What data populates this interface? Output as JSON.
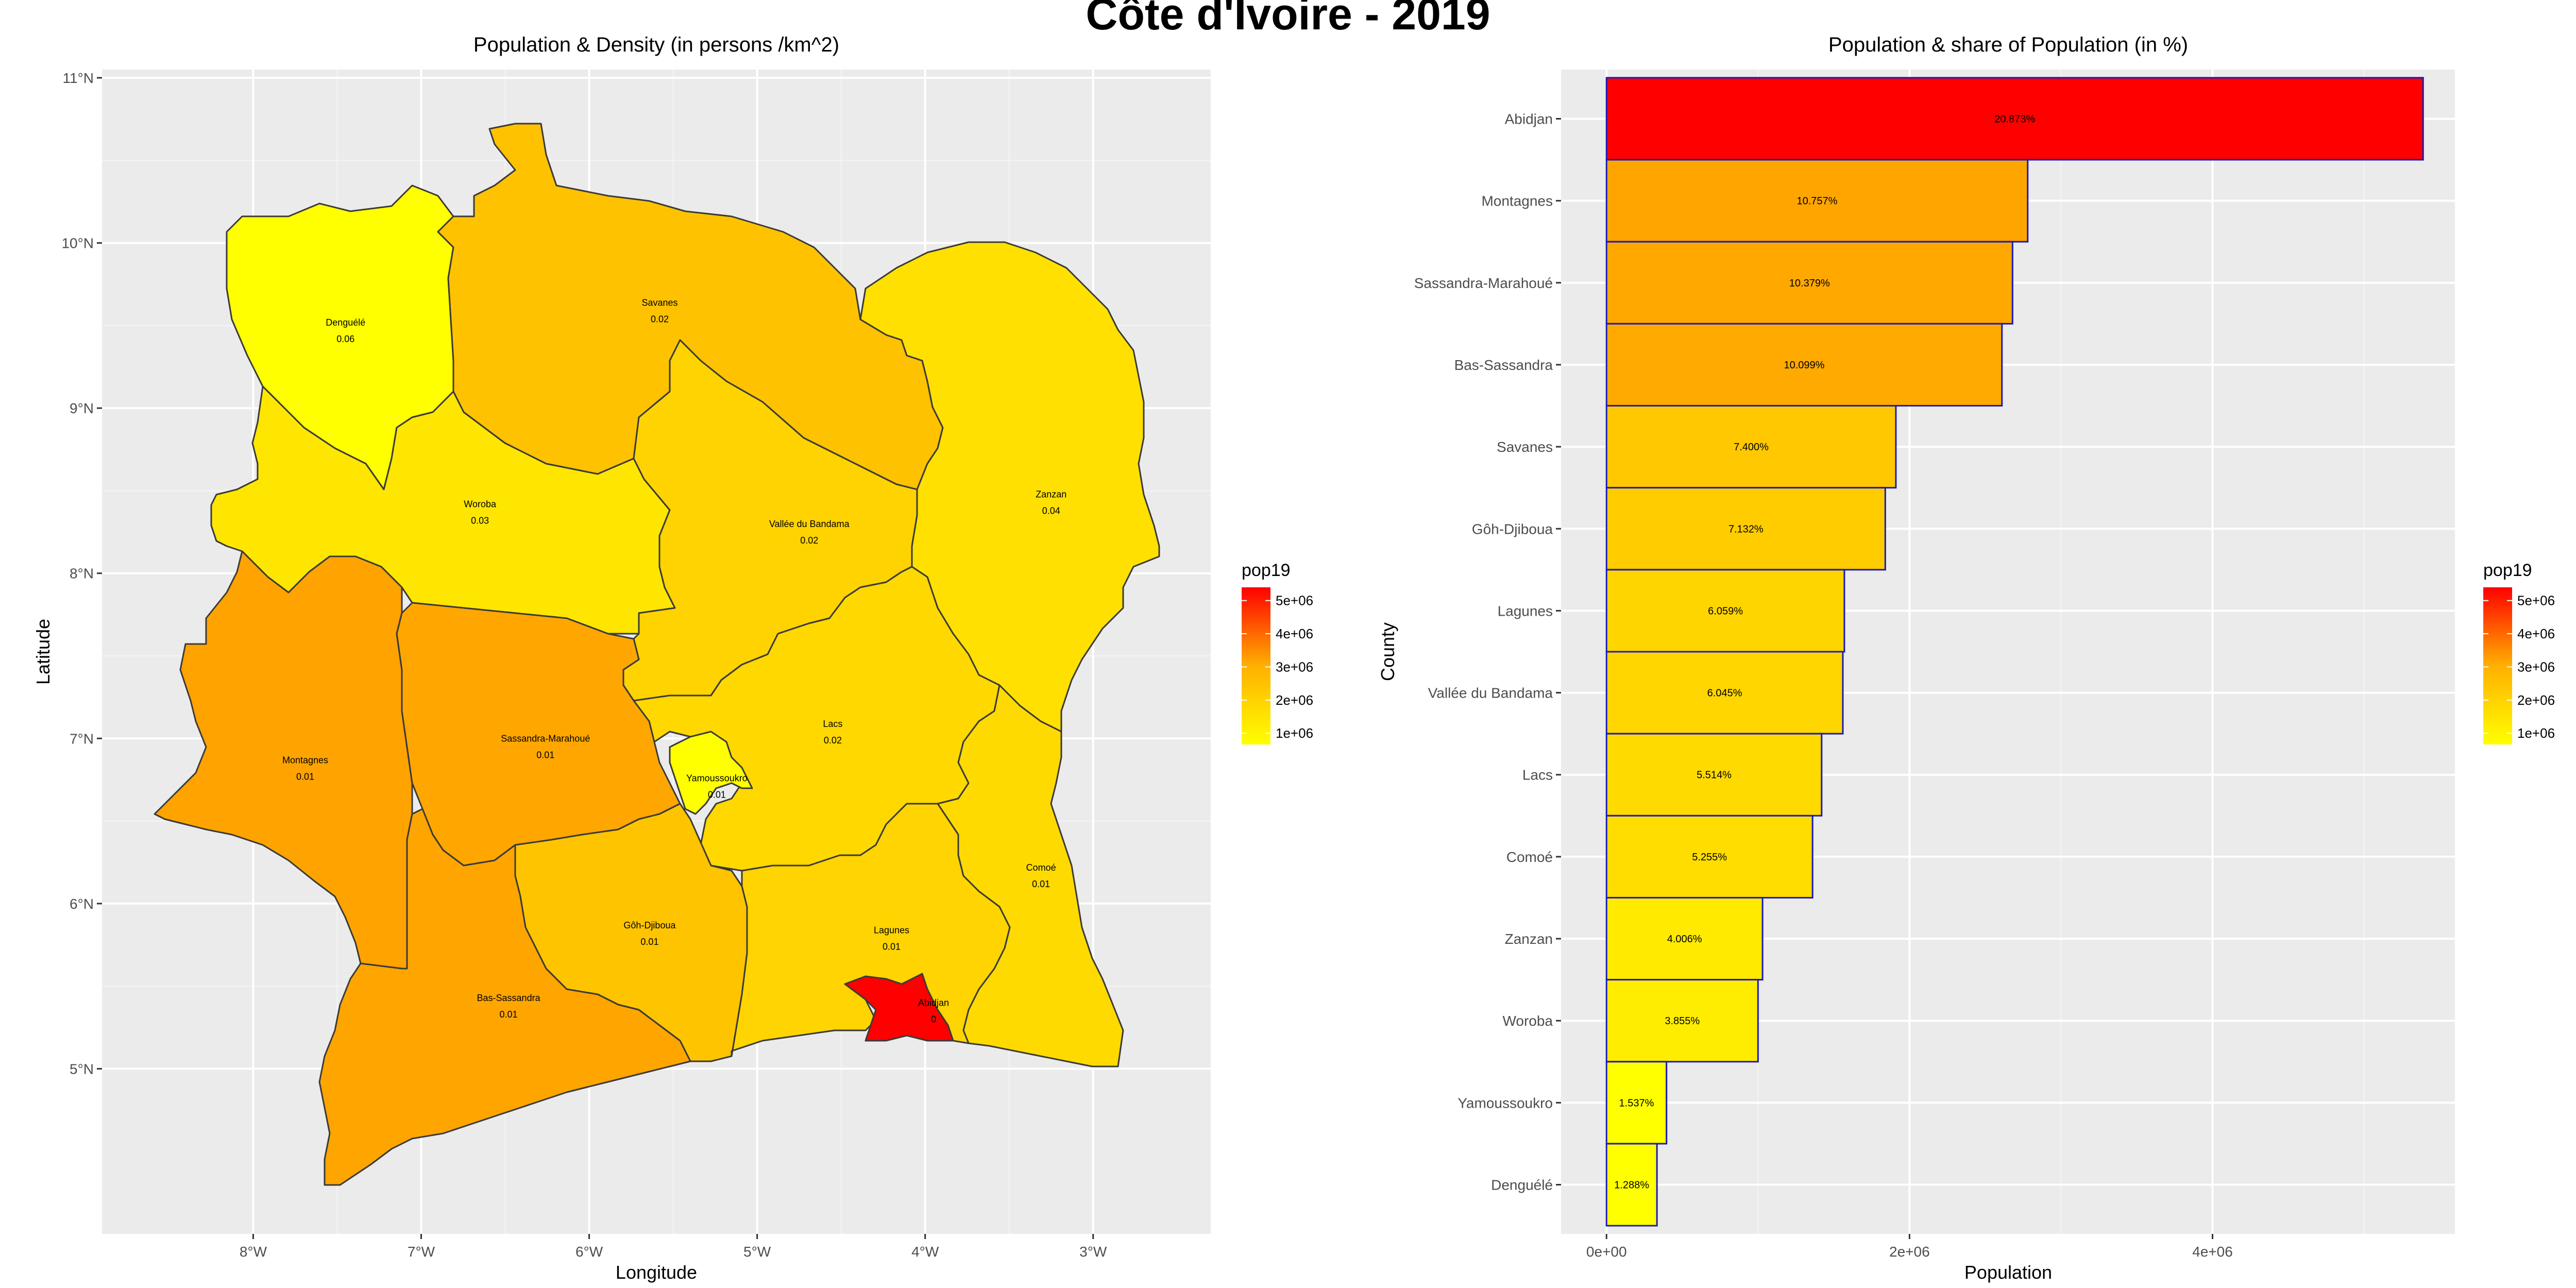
{
  "main_title": "Côte d'Ivoire - 2019",
  "colors": {
    "panel_bg": "#EBEBEB",
    "grid": "#FFFFFF",
    "bar_border": "#1A1AB8",
    "region_border": "#3A3A3A",
    "low": "#FFFF00",
    "high": "#FF0000"
  },
  "chart_data": [
    {
      "type": "map",
      "title": "Population & Density (in persons /km^2)",
      "xlabel": "Longitude",
      "ylabel": "Latitude",
      "x_ticks": [
        "8°W",
        "7°W",
        "6°W",
        "5°W",
        "4°W",
        "3°W"
      ],
      "y_ticks": [
        "11°N",
        "10°N",
        "9°N",
        "8°N",
        "7°N",
        "6°N",
        "5°N"
      ],
      "x_tick_values": [
        -8,
        -7,
        -6,
        -5,
        -4,
        -3
      ],
      "y_tick_values": [
        11,
        10,
        9,
        8,
        7,
        6,
        5
      ],
      "xlim": [
        -8.9,
        -2.3
      ],
      "ylim": [
        4.0,
        11.05
      ],
      "legend": {
        "title": "pop19",
        "labels": [
          "5e+06",
          "4e+06",
          "3e+06",
          "2e+06",
          "1e+06"
        ],
        "values": [
          5000000,
          4000000,
          3000000,
          2000000,
          1000000
        ],
        "range": [
          662000,
          5400000
        ],
        "position": "right"
      },
      "regions": [
        {
          "name": "Denguélé",
          "density": "0.06",
          "label_lon": -7.45,
          "label_lat": 9.5,
          "fill": "#FFFF00"
        },
        {
          "name": "Savanes",
          "density": "0.02",
          "label_lon": -5.58,
          "label_lat": 9.62,
          "fill": "#FFC200"
        },
        {
          "name": "Woroba",
          "density": "0.03",
          "label_lon": -6.65,
          "label_lat": 8.4,
          "fill": "#FFE600"
        },
        {
          "name": "Zanzan",
          "density": "0.04",
          "label_lon": -3.25,
          "label_lat": 8.46,
          "fill": "#FFE000"
        },
        {
          "name": "Vallée du Bandama",
          "density": "0.02",
          "label_lon": -4.69,
          "label_lat": 8.28,
          "fill": "#FFD300"
        },
        {
          "name": "Lacs",
          "density": "0.02",
          "label_lon": -4.55,
          "label_lat": 7.07,
          "fill": "#FFD800"
        },
        {
          "name": "Montagnes",
          "density": "0.01",
          "label_lon": -7.69,
          "label_lat": 6.85,
          "fill": "#FFA300"
        },
        {
          "name": "Sassandra-Marahoué",
          "density": "0.01",
          "label_lon": -6.26,
          "label_lat": 6.98,
          "fill": "#FFA700"
        },
        {
          "name": "Yamoussoukro",
          "density": "0.01",
          "label_lon": -5.24,
          "label_lat": 6.74,
          "fill": "#FFFF00"
        },
        {
          "name": "Comoé",
          "density": "0.01",
          "label_lon": -3.31,
          "label_lat": 6.2,
          "fill": "#FFDA00"
        },
        {
          "name": "Gôh-Djiboua",
          "density": "0.01",
          "label_lon": -5.64,
          "label_lat": 5.85,
          "fill": "#FFC400"
        },
        {
          "name": "Lagunes",
          "density": "0.01",
          "label_lon": -4.2,
          "label_lat": 5.82,
          "fill": "#FFD400"
        },
        {
          "name": "Bas-Sassandra",
          "density": "0.01",
          "label_lon": -6.48,
          "label_lat": 5.41,
          "fill": "#FFA500"
        },
        {
          "name": "Abidjan",
          "density": "0",
          "label_lon": -3.95,
          "label_lat": 5.38,
          "fill": "#FF0000"
        }
      ]
    },
    {
      "type": "bar",
      "orientation": "horizontal",
      "title": "Population & share of Population (in %)",
      "xlabel": "Population",
      "ylabel": "County",
      "x_ticks": [
        "0e+00",
        "2e+06",
        "4e+06"
      ],
      "x_tick_values": [
        0,
        2000000,
        4000000
      ],
      "xlim": [
        -300000,
        5600000
      ],
      "legend": {
        "title": "pop19",
        "labels": [
          "5e+06",
          "4e+06",
          "3e+06",
          "2e+06",
          "1e+06"
        ],
        "values": [
          5000000,
          4000000,
          3000000,
          2000000,
          1000000
        ],
        "range": [
          662000,
          5400000
        ],
        "position": "right"
      },
      "categories": [
        "Abidjan",
        "Montagnes",
        "Sassandra-Marahoué",
        "Bas-Sassandra",
        "Savanes",
        "Gôh-Djiboua",
        "Lagunes",
        "Vallée du Bandama",
        "Lacs",
        "Comoé",
        "Zanzan",
        "Woroba",
        "Yamoussoukro",
        "Denguélé"
      ],
      "values": [
        5390000,
        2780000,
        2680000,
        2610000,
        1910000,
        1840000,
        1570000,
        1560000,
        1420000,
        1360000,
        1030000,
        1000000,
        396000,
        333000
      ],
      "labels": [
        "20.873%",
        "10.757%",
        "10.379%",
        "10.099%",
        "7.400%",
        "7.132%",
        "6.059%",
        "6.045%",
        "5.514%",
        "5.255%",
        "4.006%",
        "3.855%",
        "1.537%",
        "1.288%"
      ],
      "fills": [
        "#FF0000",
        "#FFA500",
        "#FFA800",
        "#FFAA00",
        "#FFC800",
        "#FFCC00",
        "#FFD500",
        "#FFD600",
        "#FFDA00",
        "#FFDD00",
        "#FFEA00",
        "#FFED00",
        "#FFFF00",
        "#FFFF00"
      ]
    }
  ]
}
